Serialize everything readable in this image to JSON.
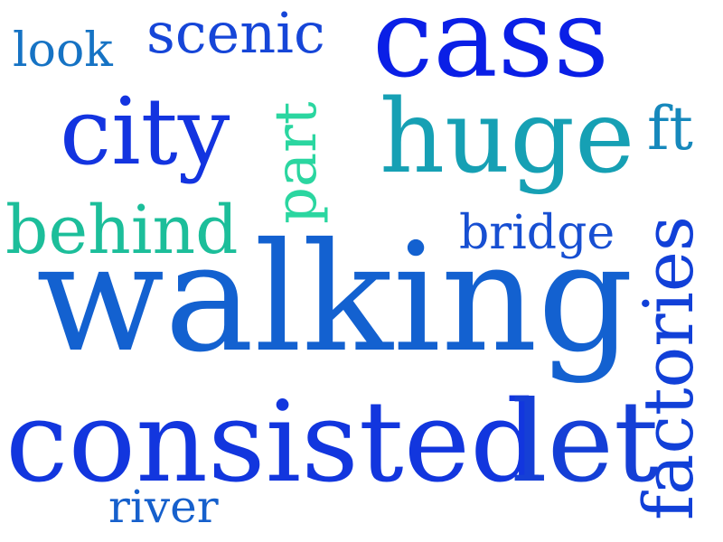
{
  "words": {
    "look": {
      "text": "look",
      "color": "#1673c4"
    },
    "scenic": {
      "text": "scenic",
      "color": "#1646d8"
    },
    "cass": {
      "text": "cass",
      "color": "#0a1fe6"
    },
    "city": {
      "text": "city",
      "color": "#1334e0"
    },
    "part": {
      "text": "part",
      "color": "#2bd6a0"
    },
    "huge": {
      "text": "huge",
      "color": "#16a0b4"
    },
    "ft": {
      "text": "ft",
      "color": "#1688bc"
    },
    "behind": {
      "text": "behind",
      "color": "#1cbe9a"
    },
    "bridge": {
      "text": "bridge",
      "color": "#174fd2"
    },
    "walking": {
      "text": "walking",
      "color": "#1361d0"
    },
    "factories": {
      "text": "factories",
      "color": "#1140d8"
    },
    "consisted": {
      "text": "consisted",
      "color": "#1236de"
    },
    "let": {
      "text": "let",
      "color": "#153fd6"
    },
    "river": {
      "text": "river",
      "color": "#1660cc"
    }
  }
}
